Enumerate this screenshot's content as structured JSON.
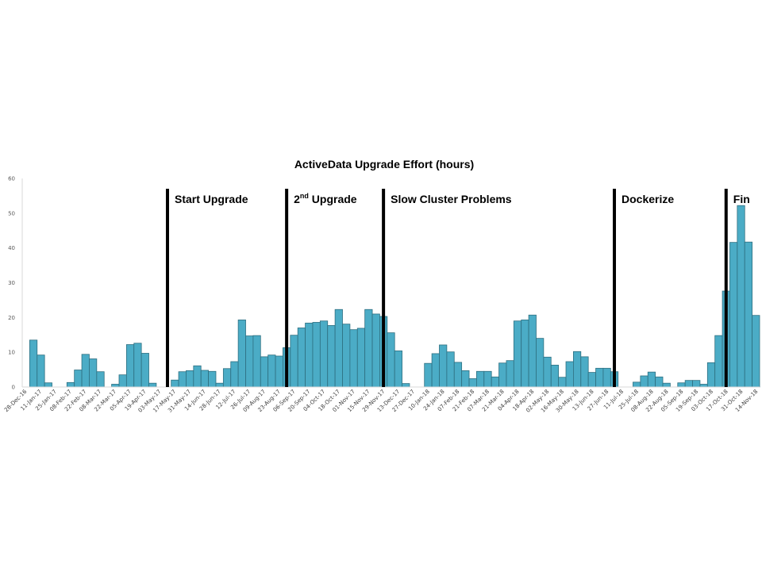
{
  "chart_data": {
    "type": "bar",
    "title": "ActiveData Upgrade Effort (hours)",
    "xlabel": "",
    "ylabel": "",
    "ylim": [
      0,
      60
    ],
    "yticks": [
      "0",
      "10",
      "20",
      "30",
      "40",
      "50",
      "60"
    ],
    "grid": false,
    "x_tick_labels": [
      "28-Dec-16",
      "11-Jan-17",
      "25-Jan-17",
      "08-Feb-17",
      "22-Feb-17",
      "08-Mar-17",
      "22-Mar-17",
      "05-Apr-17",
      "19-Apr-17",
      "03-May-17",
      "17-May-17",
      "31-May-17",
      "14-Jun-17",
      "28-Jun-17",
      "12-Jul-17",
      "26-Jul-17",
      "09-Aug-17",
      "23-Aug-17",
      "06-Sep-17",
      "20-Sep-17",
      "04-Oct-17",
      "18-Oct-17",
      "01-Nov-17",
      "15-Nov-17",
      "29-Nov-17",
      "13-Dec-17",
      "27-Dec-17",
      "10-Jan-18",
      "24-Jan-18",
      "07-Feb-18",
      "21-Feb-18",
      "07-Mar-18",
      "21-Mar-18",
      "04-Apr-18",
      "18-Apr-18",
      "02-May-18",
      "16-May-18",
      "30-May-18",
      "13-Jun-18",
      "27-Jun-18",
      "11-Jul-18",
      "25-Jul-18",
      "08-Aug-18",
      "22-Aug-18",
      "05-Sep-18",
      "19-Sep-18",
      "03-Oct-18",
      "17-Oct-18",
      "31-Oct-18",
      "14-Nov-18"
    ],
    "values": [
      0,
      13.5,
      9.2,
      1.2,
      0,
      0,
      1.3,
      4.9,
      9.4,
      8.1,
      4.4,
      0,
      0.8,
      3.5,
      12.2,
      12.6,
      9.7,
      1.1,
      0,
      0,
      2.0,
      4.4,
      4.7,
      6.1,
      4.8,
      4.5,
      1.1,
      5.3,
      7.3,
      19.3,
      14.7,
      14.8,
      8.7,
      9.2,
      8.9,
      11.3,
      14.9,
      17.0,
      18.4,
      18.6,
      19.0,
      17.7,
      22.3,
      18.1,
      16.5,
      16.9,
      22.3,
      21.0,
      20.3,
      15.6,
      10.4,
      1.0,
      0,
      0,
      6.8,
      9.6,
      12.1,
      10.1,
      7.1,
      4.7,
      2.4,
      4.5,
      4.5,
      2.9,
      6.9,
      7.6,
      19.0,
      19.3,
      20.7,
      14.0,
      8.6,
      6.3,
      2.8,
      7.3,
      10.2,
      8.7,
      4.2,
      5.4,
      5.4,
      4.4,
      0,
      0,
      1.4,
      3.2,
      4.3,
      2.9,
      1.1,
      0,
      1.2,
      1.9,
      1.9,
      0.8,
      7.0,
      14.8,
      27.6,
      41.6,
      52.2,
      41.7,
      20.6
    ],
    "phases": [
      {
        "label": "Start Upgrade",
        "start_index": 19.5
      },
      {
        "label": "2",
        "superscript": "nd",
        "label_rest": " Upgrade",
        "start_index": 35.5
      },
      {
        "label": "Slow Cluster Problems",
        "start_index": 48.5
      },
      {
        "label": "Dockerize",
        "start_index": 79.5
      },
      {
        "label": "Fin",
        "start_index": 94.5
      }
    ]
  }
}
